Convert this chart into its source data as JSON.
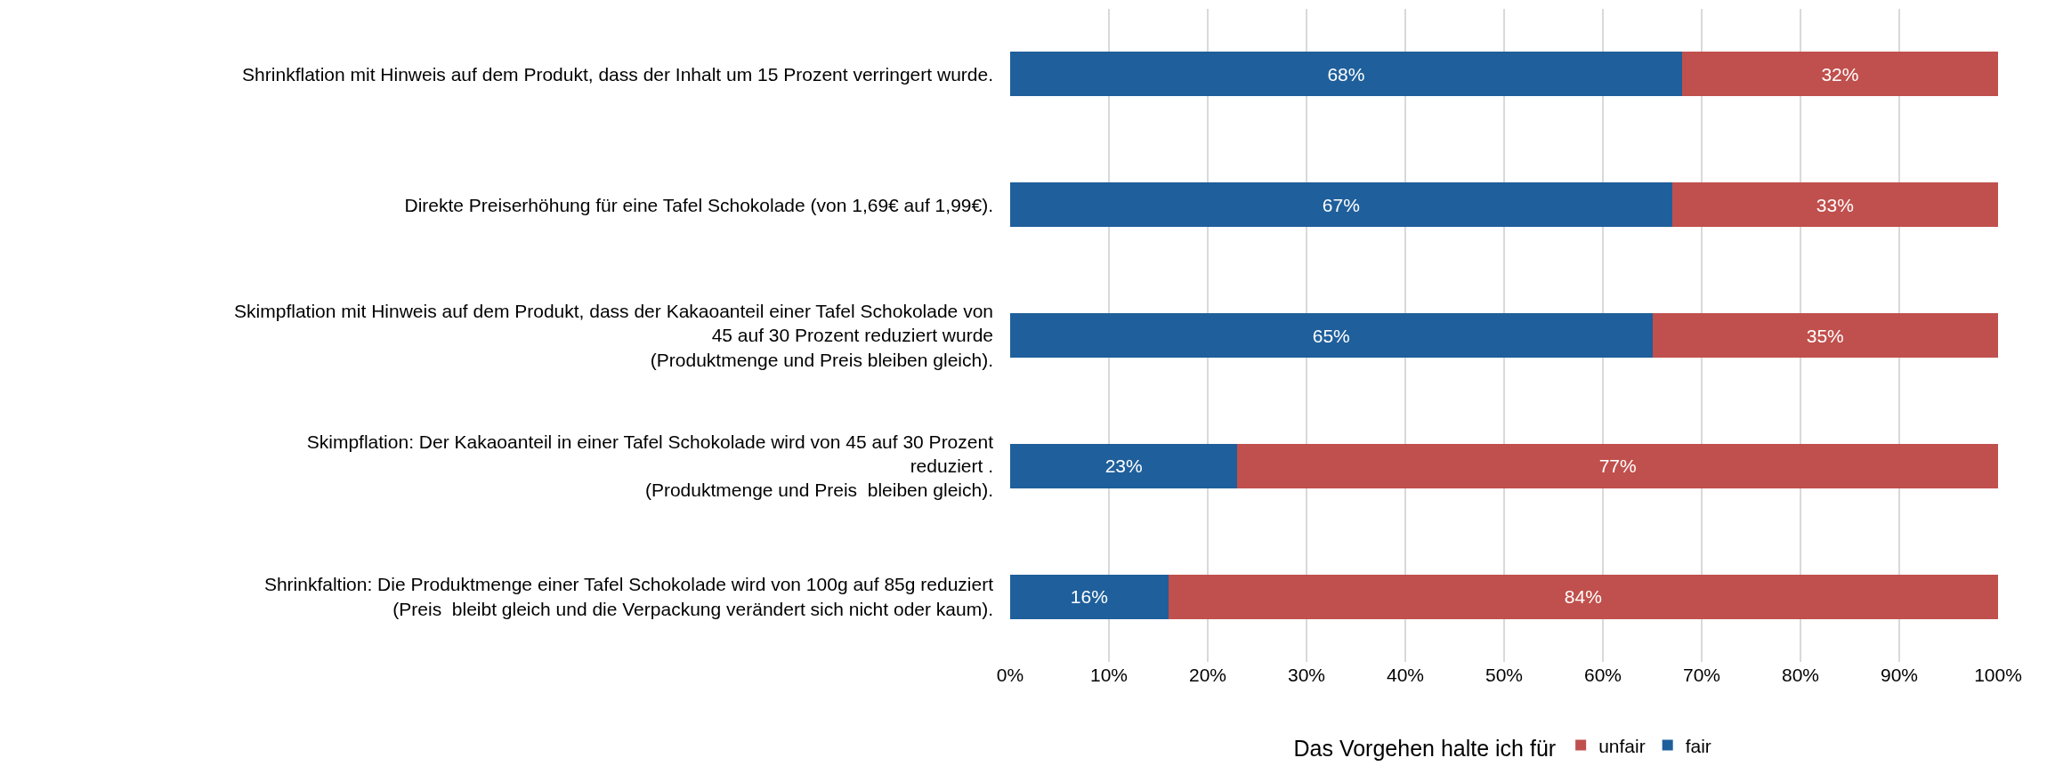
{
  "chart_data": {
    "type": "bar",
    "orientation": "horizontal",
    "stacked": true,
    "categories": [
      "Shrinkflation mit Hinweis auf dem Produkt, dass der Inhalt um 15 Prozent verringert wurde.",
      "Direkte Preiserhöhung für eine Tafel Schokolade (von 1,69€ auf 1,99€).",
      "Skimpflation mit Hinweis auf dem Produkt, dass der Kakaoanteil einer Tafel Schokolade von\n45 auf 30 Prozent reduziert wurde\n(Produktmenge und Preis bleiben gleich).",
      "Skimpflation: Der Kakaoanteil in einer Tafel Schokolade wird von 45 auf 30 Prozent\nreduziert .\n(Produktmenge und Preis  bleiben gleich).",
      "Shrinkfaltion: Die Produktmenge einer Tafel Schokolade wird von 100g auf 85g reduziert\n(Preis  bleibt gleich und die Verpackung verändert sich nicht oder kaum)."
    ],
    "series": [
      {
        "name": "fair",
        "color": "#1f5f9b",
        "values": [
          68,
          67,
          65,
          23,
          16
        ],
        "value_labels": [
          "68%",
          "67%",
          "65%",
          "23%",
          "16%"
        ]
      },
      {
        "name": "unfair",
        "color": "#c0504d",
        "values": [
          32,
          33,
          35,
          77,
          84
        ],
        "value_labels": [
          "32%",
          "33%",
          "35%",
          "77%",
          "84%"
        ]
      }
    ],
    "xlim": [
      0,
      100
    ],
    "xticks": [
      {
        "value": 0,
        "label": "0%"
      },
      {
        "value": 10,
        "label": "10%"
      },
      {
        "value": 20,
        "label": "20%"
      },
      {
        "value": 30,
        "label": "30%"
      },
      {
        "value": 40,
        "label": "40%"
      },
      {
        "value": 50,
        "label": "50%"
      },
      {
        "value": 60,
        "label": "60%"
      },
      {
        "value": 70,
        "label": "70%"
      },
      {
        "value": 80,
        "label": "80%"
      },
      {
        "value": 90,
        "label": "90%"
      },
      {
        "value": 100,
        "label": "100%"
      }
    ],
    "grid": "x",
    "legend": "bottom",
    "legend_title": "Das Vorgehen halte ich für"
  }
}
